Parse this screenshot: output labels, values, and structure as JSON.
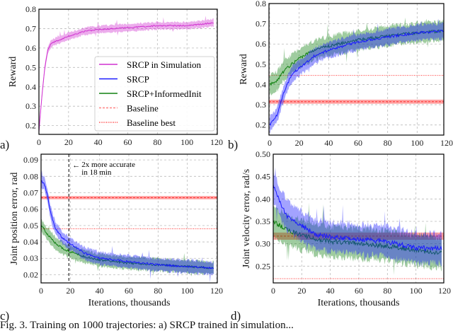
{
  "caption": "Fig. 3.  Training on 1000 trajectories: a) SRCP trained in simulation...",
  "colors": {
    "sim": "#d030d0",
    "srcp": "#1a1aff",
    "informed": "#108010",
    "baseline": "#ff3030"
  },
  "chart_data": [
    {
      "type": "line",
      "panel": "a)",
      "xlabel": "",
      "ylabel": "Reward",
      "xlim": [
        0,
        120
      ],
      "ylim": [
        0.155,
        0.8
      ],
      "xticks": [
        0,
        20,
        40,
        60,
        80,
        100,
        120
      ],
      "yticks": [
        0.2,
        0.3,
        0.4,
        0.5,
        0.6,
        0.7,
        0.8
      ],
      "grid": true,
      "legend_position": "lower-right",
      "legend": [
        "SRCP in Simulation",
        "SRCP",
        "SRCP+InformedInit",
        "Baseline",
        "Baseline best"
      ],
      "series": [
        {
          "name": "SRCP in Simulation",
          "color": "sim",
          "band": 0.02,
          "x": [
            0,
            2,
            4,
            6,
            8,
            10,
            15,
            20,
            30,
            40,
            60,
            80,
            100,
            118
          ],
          "y": [
            0.17,
            0.35,
            0.5,
            0.59,
            0.62,
            0.63,
            0.645,
            0.66,
            0.685,
            0.695,
            0.705,
            0.715,
            0.715,
            0.73
          ]
        }
      ]
    },
    {
      "type": "line",
      "panel": "b)",
      "xlabel": "",
      "ylabel": "Reward",
      "xlim": [
        0,
        120
      ],
      "ylim": [
        0.15,
        0.8
      ],
      "xticks": [
        0,
        20,
        40,
        60,
        80,
        100,
        120
      ],
      "yticks": [
        0.2,
        0.3,
        0.4,
        0.5,
        0.6,
        0.7,
        0.8
      ],
      "grid": true,
      "series": [
        {
          "name": "SRCP+InformedInit",
          "color": "informed",
          "band": 0.05,
          "x": [
            0,
            5,
            10,
            15,
            20,
            30,
            40,
            60,
            80,
            100,
            118
          ],
          "y": [
            0.4,
            0.42,
            0.47,
            0.5,
            0.53,
            0.57,
            0.59,
            0.62,
            0.64,
            0.655,
            0.665
          ]
        },
        {
          "name": "SRCP",
          "color": "srcp",
          "band": 0.04,
          "x": [
            0,
            5,
            10,
            15,
            20,
            30,
            40,
            60,
            80,
            100,
            118
          ],
          "y": [
            0.2,
            0.25,
            0.37,
            0.45,
            0.48,
            0.54,
            0.57,
            0.61,
            0.635,
            0.655,
            0.665
          ]
        }
      ],
      "baseline": 0.315,
      "baseline_band": 0.01,
      "baseline_best": 0.445
    },
    {
      "type": "line",
      "panel": "c)",
      "xlabel": "Iterations, thousands",
      "ylabel": "Joint position error, rad",
      "xlim": [
        0,
        120
      ],
      "ylim": [
        0.015,
        0.0935
      ],
      "xticks": [
        0,
        20,
        40,
        60,
        80,
        100,
        120
      ],
      "yticks": [
        0.02,
        0.03,
        0.04,
        0.05,
        0.06,
        0.07,
        0.08,
        0.09
      ],
      "grid": true,
      "series": [
        {
          "name": "SRCP+InformedInit",
          "color": "informed",
          "band": 0.004,
          "x": [
            0,
            2,
            4,
            6,
            8,
            10,
            15,
            20,
            30,
            40,
            60,
            80,
            100,
            118
          ],
          "y": [
            0.05,
            0.048,
            0.045,
            0.043,
            0.041,
            0.039,
            0.036,
            0.034,
            0.031,
            0.029,
            0.027,
            0.026,
            0.025,
            0.024
          ]
        },
        {
          "name": "SRCP",
          "color": "srcp",
          "band": 0.004,
          "x": [
            0,
            2,
            4,
            6,
            8,
            10,
            15,
            20,
            30,
            40,
            60,
            80,
            100,
            118
          ],
          "y": [
            0.077,
            0.076,
            0.07,
            0.06,
            0.053,
            0.048,
            0.042,
            0.039,
            0.033,
            0.03,
            0.028,
            0.026,
            0.025,
            0.024
          ]
        }
      ],
      "baseline": 0.067,
      "baseline_band": 0.001,
      "baseline_best": 0.048,
      "vline": 19,
      "annotation": [
        "2x more accurate",
        "in 18 min"
      ]
    },
    {
      "type": "line",
      "panel": "d)",
      "xlabel": "Iterations, thousands",
      "ylabel": "Joint velocity error, rad/s",
      "xlim": [
        0,
        120
      ],
      "ylim": [
        0.2126,
        0.5
      ],
      "xticks": [
        0,
        20,
        40,
        60,
        80,
        100,
        120
      ],
      "yticks": [
        0.25,
        0.3,
        0.35,
        0.4,
        0.45,
        0.5
      ],
      "grid": true,
      "series": [
        {
          "name": "SRCP+InformedInit",
          "color": "informed",
          "band": 0.035,
          "x": [
            0,
            5,
            10,
            20,
            30,
            40,
            60,
            80,
            100,
            118
          ],
          "y": [
            0.35,
            0.34,
            0.33,
            0.32,
            0.31,
            0.305,
            0.3,
            0.295,
            0.285,
            0.28
          ]
        },
        {
          "name": "SRCP",
          "color": "srcp",
          "band": 0.035,
          "x": [
            0,
            5,
            10,
            20,
            30,
            40,
            60,
            80,
            100,
            118
          ],
          "y": [
            0.43,
            0.39,
            0.36,
            0.34,
            0.32,
            0.315,
            0.31,
            0.305,
            0.29,
            0.29
          ]
        }
      ],
      "baseline": 0.317,
      "baseline_band": 0.008,
      "baseline_best": 0.222
    }
  ]
}
